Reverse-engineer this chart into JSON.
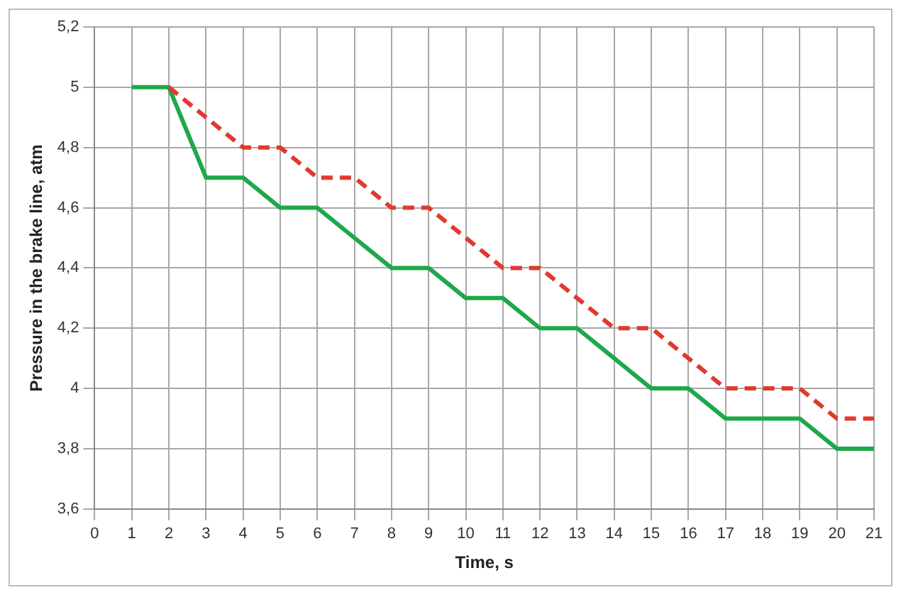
{
  "chart_data": {
    "type": "line",
    "xlabel": "Time, s",
    "ylabel": "Pressure in the brake line, atm",
    "x": [
      1,
      2,
      3,
      4,
      5,
      6,
      7,
      8,
      9,
      10,
      11,
      12,
      13,
      14,
      15,
      16,
      17,
      18,
      19,
      20,
      21
    ],
    "series": [
      {
        "color": "#e03a2f",
        "line_style": "dashed",
        "x": [
          2,
          3,
          4,
          5,
          6,
          7,
          8,
          9,
          10,
          11,
          12,
          13,
          14,
          15,
          16,
          17,
          18,
          19,
          20,
          21
        ],
        "values": [
          5,
          4.9,
          4.8,
          4.8,
          4.7,
          4.7,
          4.6,
          4.6,
          4.5,
          4.4,
          4.4,
          4.3,
          4.2,
          4.2,
          4.1,
          4.0,
          4.0,
          4.0,
          3.9,
          3.9
        ]
      },
      {
        "color": "#1fa84a",
        "line_style": "solid",
        "values": [
          5,
          5,
          4.7,
          4.7,
          4.6,
          4.6,
          4.5,
          4.4,
          4.4,
          4.3,
          4.3,
          4.2,
          4.2,
          4.1,
          4.0,
          4.0,
          3.9,
          3.9,
          3.9,
          3.8,
          3.8
        ]
      }
    ],
    "xlim": [
      0,
      21
    ],
    "xticks": [
      0,
      1,
      2,
      3,
      4,
      5,
      6,
      7,
      8,
      9,
      10,
      11,
      12,
      13,
      14,
      15,
      16,
      17,
      18,
      19,
      20,
      21
    ],
    "ylim": [
      3.6,
      5.2
    ],
    "yticks": [
      {
        "value": 3.6,
        "label": "3,6"
      },
      {
        "value": 3.8,
        "label": "3,8"
      },
      {
        "value": 4,
        "label": "4"
      },
      {
        "value": 4.2,
        "label": "4,2"
      },
      {
        "value": 4.4,
        "label": "4,4"
      },
      {
        "value": 4.6,
        "label": "4,6"
      },
      {
        "value": 4.8,
        "label": "4,8"
      },
      {
        "value": 5,
        "label": "5"
      },
      {
        "value": 5.2,
        "label": "5,2"
      }
    ],
    "grid": true,
    "legend": false,
    "marker": "none"
  }
}
